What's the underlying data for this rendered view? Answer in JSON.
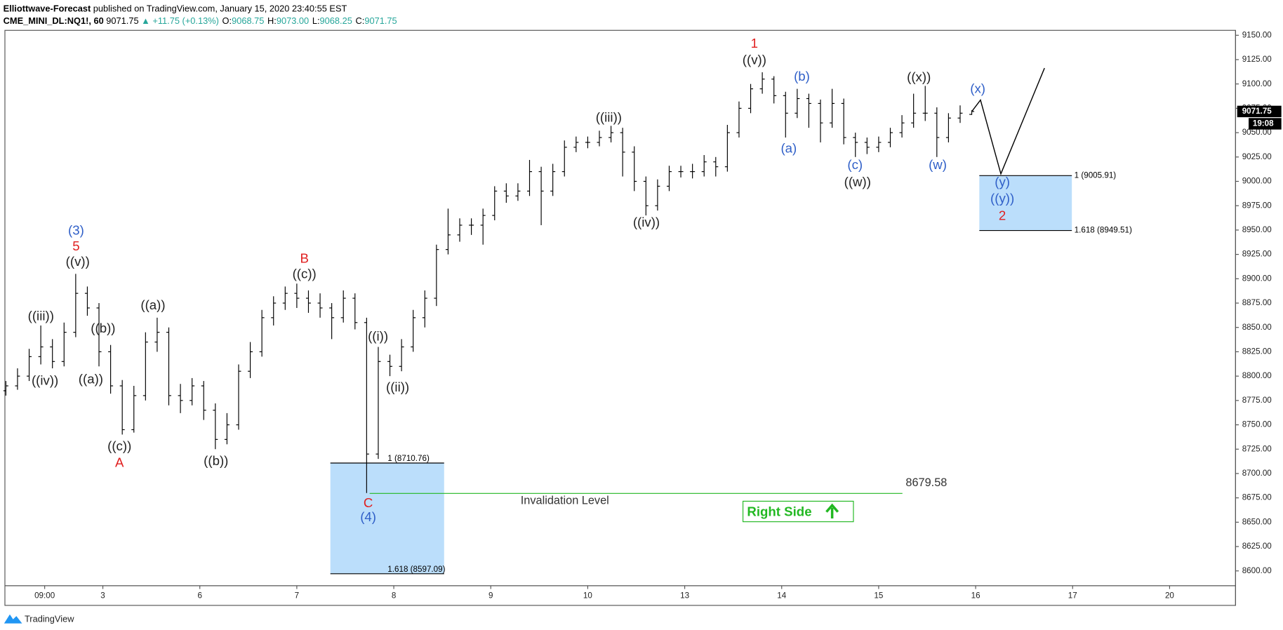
{
  "header": {
    "publisher": "Elliottwave-Forecast",
    "published": "published on TradingView.com, January 15, 2020 23:40:55 EST",
    "symbol": "CME_MINI_DL:NQ1!, 60",
    "last": "9071.75",
    "change": "▲ +11.75 (+0.13%)",
    "ohlc": [
      {
        "label": "O:",
        "value": "9068.75"
      },
      {
        "label": "H:",
        "value": "9073.00"
      },
      {
        "label": "L:",
        "value": "9068.25"
      },
      {
        "label": "C:",
        "value": "9071.75"
      }
    ]
  },
  "chart_data": {
    "type": "ohlc",
    "color": "#000000",
    "x": [
      0,
      0.12,
      0.24,
      0.36,
      0.48,
      0.6,
      0.72,
      0.84,
      0.96,
      1.08,
      1.2,
      1.32,
      1.44,
      1.56,
      1.68,
      1.8,
      1.92,
      2.04,
      2.16,
      2.28,
      2.4,
      2.52,
      2.64,
      2.76,
      2.88,
      3,
      3.12,
      3.24,
      3.36,
      3.48,
      3.6,
      3.72,
      3.84,
      3.96,
      4.08,
      4.2,
      4.32,
      4.44,
      4.56,
      4.68,
      4.8,
      4.92,
      5.04,
      5.16,
      5.28,
      5.4,
      5.52,
      5.64,
      5.76,
      5.88,
      6,
      6.12,
      6.24,
      6.36,
      6.48,
      6.6,
      6.72,
      6.84,
      6.96,
      7.08,
      7.2,
      7.32,
      7.44,
      7.56,
      7.68,
      7.8,
      7.92,
      8.04,
      8.16,
      8.28,
      8.4,
      8.52,
      8.64,
      8.76,
      8.88,
      9,
      9.12,
      9.24,
      9.36,
      9.48,
      9.6,
      9.72,
      9.84,
      9.96
    ],
    "open": [
      8785,
      8790,
      8800,
      8820,
      8830,
      8815,
      8845,
      8885,
      8870,
      8825,
      8790,
      8745,
      8780,
      8835,
      8845,
      8780,
      8775,
      8790,
      8765,
      8735,
      8750,
      8805,
      8825,
      8860,
      8875,
      8885,
      8880,
      8875,
      8870,
      8860,
      8880,
      8855,
      8720,
      8815,
      8810,
      8830,
      8860,
      8880,
      8930,
      8945,
      8955,
      8955,
      8965,
      8990,
      8985,
      8990,
      9010,
      8990,
      9010,
      9035,
      9040,
      9040,
      9045,
      9050,
      9030,
      9000,
      8975,
      8995,
      9010,
      9010,
      9010,
      9020,
      9015,
      9050,
      9075,
      9095,
      9105,
      9088,
      9070,
      9085,
      9080,
      9060,
      9080,
      9045,
      9040,
      9035,
      9040,
      9050,
      9060,
      9070,
      9070,
      9045,
      9065,
      9068.75
    ],
    "high": [
      8795,
      8808,
      8828,
      8852,
      8838,
      8855,
      8905,
      8892,
      8875,
      8832,
      8796,
      8790,
      8845,
      8860,
      8850,
      8792,
      8798,
      8795,
      8772,
      8762,
      8812,
      8835,
      8868,
      8882,
      8892,
      8895,
      8888,
      8885,
      8875,
      8888,
      8885,
      8860,
      8830,
      8822,
      8838,
      8868,
      8888,
      8935,
      8972,
      8962,
      8962,
      8972,
      8995,
      8998,
      8998,
      9022,
      9015,
      9018,
      9042,
      9046,
      9046,
      9052,
      9057,
      9055,
      9036,
      9005,
      9002,
      9016,
      9016,
      9018,
      9027,
      9025,
      9058,
      9082,
      9100,
      9112,
      9108,
      9092,
      9095,
      9090,
      9084,
      9095,
      9085,
      9050,
      9045,
      9046,
      9055,
      9068,
      9090,
      9098,
      9076,
      9070,
      9078,
      9073
    ],
    "low": [
      8780,
      8786,
      8795,
      8812,
      8808,
      8810,
      8840,
      8862,
      8810,
      8782,
      8740,
      8742,
      8775,
      8825,
      8770,
      8762,
      8770,
      8755,
      8725,
      8730,
      8745,
      8798,
      8820,
      8852,
      8868,
      8870,
      8865,
      8860,
      8838,
      8855,
      8848,
      8680,
      8715,
      8800,
      8805,
      8825,
      8850,
      8872,
      8925,
      8938,
      8945,
      8935,
      8960,
      8978,
      8980,
      8985,
      8955,
      8985,
      9005,
      9030,
      9034,
      9036,
      9040,
      9005,
      8990,
      8965,
      8970,
      8990,
      9004,
      9003,
      9005,
      9005,
      9010,
      9045,
      9070,
      9090,
      9080,
      9045,
      9065,
      9055,
      9040,
      9055,
      9038,
      9025,
      9028,
      9030,
      9035,
      9045,
      9055,
      9062,
      9025,
      9040,
      9060,
      9068.25
    ],
    "close": [
      8790,
      8800,
      8820,
      8830,
      8815,
      8845,
      8885,
      8870,
      8825,
      8790,
      8745,
      8780,
      8835,
      8845,
      8780,
      8775,
      8790,
      8765,
      8735,
      8750,
      8805,
      8825,
      8860,
      8875,
      8885,
      8880,
      8875,
      8870,
      8860,
      8880,
      8855,
      8720,
      8815,
      8810,
      8830,
      8860,
      8880,
      8930,
      8945,
      8955,
      8955,
      8965,
      8990,
      8985,
      8990,
      9010,
      8990,
      9010,
      9035,
      9040,
      9040,
      9045,
      9050,
      9030,
      9000,
      8975,
      8995,
      9010,
      9010,
      9010,
      9020,
      9015,
      9050,
      9075,
      9095,
      9105,
      9088,
      9070,
      9085,
      9080,
      9060,
      9080,
      9045,
      9040,
      9035,
      9040,
      9050,
      9060,
      9070,
      9070,
      9045,
      9065,
      9070,
      9071.75
    ],
    "xlim": [
      -0.01,
      12.68
    ],
    "xticks": [
      {
        "value": 0.4,
        "label": "09:00"
      },
      {
        "value": 1,
        "label": "3"
      },
      {
        "value": 2,
        "label": "6"
      },
      {
        "value": 3,
        "label": "7"
      },
      {
        "value": 4,
        "label": "8"
      },
      {
        "value": 5,
        "label": "9"
      },
      {
        "value": 6,
        "label": "10"
      },
      {
        "value": 7,
        "label": "13"
      },
      {
        "value": 8,
        "label": "14"
      },
      {
        "value": 9,
        "label": "15"
      },
      {
        "value": 10,
        "label": "16"
      },
      {
        "value": 11,
        "label": "17"
      },
      {
        "value": 12,
        "label": "20"
      }
    ],
    "ylim": [
      8584.8,
      9155.05
    ],
    "yticks": [
      {
        "value": 8600,
        "label": "8600.00"
      },
      {
        "value": 8625,
        "label": "8625.00"
      },
      {
        "value": 8650,
        "label": "8650.00"
      },
      {
        "value": 8675,
        "label": "8675.00"
      },
      {
        "value": 8700,
        "label": "8700.00"
      },
      {
        "value": 8725,
        "label": "8725.00"
      },
      {
        "value": 8750,
        "label": "8750.00"
      },
      {
        "value": 8775,
        "label": "8775.00"
      },
      {
        "value": 8800,
        "label": "8800.00"
      },
      {
        "value": 8825,
        "label": "8825.00"
      },
      {
        "value": 8850,
        "label": "8850.00"
      },
      {
        "value": 8875,
        "label": "8875.00"
      },
      {
        "value": 8900,
        "label": "8900.00"
      },
      {
        "value": 8925,
        "label": "8925.00"
      },
      {
        "value": 8950,
        "label": "8950.00"
      },
      {
        "value": 8975,
        "label": "8975.00"
      },
      {
        "value": 9000,
        "label": "9000.00"
      },
      {
        "value": 9025,
        "label": "9025.00"
      },
      {
        "value": 9050,
        "label": "9050.00"
      },
      {
        "value": 9075,
        "label": "9075.00"
      },
      {
        "value": 9100,
        "label": "9100.00"
      },
      {
        "value": 9125,
        "label": "9125.00"
      },
      {
        "value": 9150,
        "label": "9150.00"
      }
    ],
    "last_badge": {
      "value": 9071.75,
      "label": "9071.75"
    },
    "countdown": "19:08",
    "zones": [
      {
        "x": [
          3.346,
          4.519
        ],
        "top": 8710.76,
        "bottom": 8597.09,
        "top_label": "1 (8710.76)",
        "bottom_label": "1.618 (8597.09)",
        "color": "#bbdefb"
      },
      {
        "x": [
          10.038,
          10.992
        ],
        "top": 9005.91,
        "bottom": 8949.51,
        "top_label": "1 (9005.91)",
        "bottom_label": "1.618 (8949.51)",
        "color": "#bbdefb"
      }
    ],
    "invalidation": {
      "value": 8679.58,
      "x": [
        3.751,
        9.245
      ],
      "value_label": "8679.58",
      "text": "Invalidation Level",
      "color": "#22b822"
    },
    "projection": {
      "x": [
        9.96,
        10.05,
        10.26,
        10.71
      ],
      "values": [
        9071.75,
        9083.5,
        9007.7,
        9116.3
      ]
    },
    "right_side": "Right Side",
    "annotations": [
      {
        "text": "(3)",
        "color": "#2f5fc8"
      },
      {
        "text": "5",
        "color": "#e02020"
      },
      {
        "text": "((v))",
        "color": "#222"
      },
      {
        "text": "((iii))",
        "color": "#222"
      },
      {
        "text": "((iv))",
        "color": "#222"
      },
      {
        "text": "((b))",
        "color": "#222"
      },
      {
        "text": "((a))",
        "color": "#222"
      },
      {
        "text": "((c))",
        "color": "#222"
      },
      {
        "text": "A",
        "color": "#e02020"
      },
      {
        "text": "((a))",
        "color": "#222"
      },
      {
        "text": "((b))",
        "color": "#222"
      },
      {
        "text": "B",
        "color": "#e02020"
      },
      {
        "text": "((c))",
        "color": "#222"
      },
      {
        "text": "((i))",
        "color": "#222"
      },
      {
        "text": "((ii))",
        "color": "#222"
      },
      {
        "text": "C",
        "color": "#e02020"
      },
      {
        "text": "(4)",
        "color": "#2f5fc8"
      },
      {
        "text": "((iii))",
        "color": "#222"
      },
      {
        "text": "((iv))",
        "color": "#222"
      },
      {
        "text": "1",
        "color": "#e02020"
      },
      {
        "text": "((v))",
        "color": "#222"
      },
      {
        "text": "(b)",
        "color": "#2f5fc8"
      },
      {
        "text": "(a)",
        "color": "#2f5fc8"
      },
      {
        "text": "(c)",
        "color": "#2f5fc8"
      },
      {
        "text": "((w))",
        "color": "#222"
      },
      {
        "text": "((x))",
        "color": "#222"
      },
      {
        "text": "(w)",
        "color": "#2f5fc8"
      },
      {
        "text": "(x)",
        "color": "#2f5fc8"
      },
      {
        "text": "(y)",
        "color": "#2f5fc8"
      },
      {
        "text": "((y))",
        "color": "#2f5fc8"
      },
      {
        "text": "2",
        "color": "#e02020"
      }
    ]
  },
  "footer": {
    "brand": "TradingView"
  }
}
